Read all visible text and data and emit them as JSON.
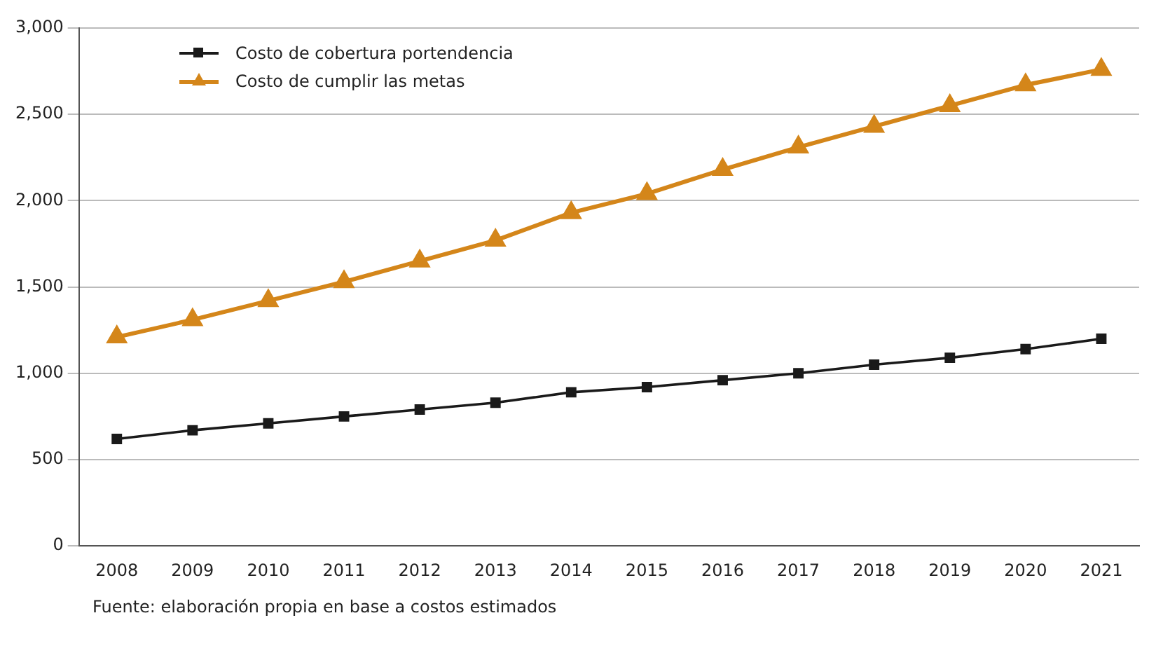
{
  "chart_data": {
    "type": "line",
    "categories": [
      "2008",
      "2009",
      "2010",
      "2011",
      "2012",
      "2013",
      "2014",
      "2015",
      "2016",
      "2017",
      "2018",
      "2019",
      "2020",
      "2021"
    ],
    "series": [
      {
        "name": "Costo de cobertura portendencia",
        "color": "#1a1a1a",
        "marker": "square",
        "values": [
          620,
          670,
          710,
          750,
          790,
          830,
          890,
          920,
          960,
          1000,
          1050,
          1090,
          1140,
          1200
        ]
      },
      {
        "name": "Costo de cumplir las metas",
        "color": "#d4861a",
        "marker": "triangle",
        "values": [
          1210,
          1310,
          1420,
          1530,
          1650,
          1770,
          1930,
          2040,
          2180,
          2310,
          2430,
          2550,
          2670,
          2760
        ]
      }
    ],
    "ylim": [
      0,
      3000
    ],
    "yticks": [
      0,
      500,
      {
        "value": 1000,
        "label": "1,000"
      },
      {
        "value": 1500,
        "label": "1,500"
      },
      {
        "value": 2000,
        "label": "2,000"
      },
      {
        "value": 2500,
        "label": "2,500"
      },
      {
        "value": 3000,
        "label": "3,000"
      }
    ],
    "grid": "y",
    "legend": "top left",
    "annotations": [
      "Fuente: elaboración propia en base a costos estimados"
    ]
  }
}
